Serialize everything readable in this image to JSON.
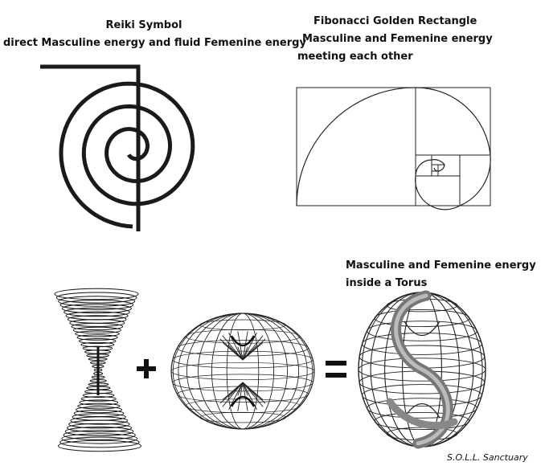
{
  "reiki": {
    "title": "Reiki Symbol",
    "subtitle": "direct Masculine energy and fluid Femenine energy"
  },
  "fibonacci": {
    "title": "Fibonacci Golden Rectangle",
    "line2": "Masculine and Femenine energy",
    "line3": "meeting each other"
  },
  "torus": {
    "line1": "Masculine and Femenine energy",
    "line2": "inside a Torus"
  },
  "equation": {
    "plus": "+",
    "equals": "="
  },
  "credit": "S.O.L.L. Sanctuary"
}
